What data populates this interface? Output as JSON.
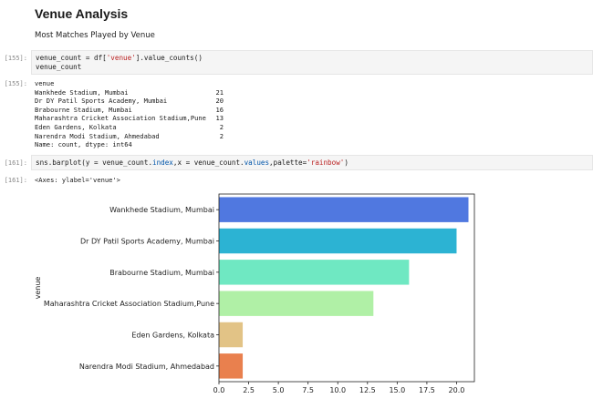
{
  "markdown": {
    "heading": "Venue Analysis",
    "subheading": "Most Matches Played by Venue"
  },
  "cells": {
    "cell1": {
      "prompt": "[155]:",
      "line1": {
        "a": "venue_count = df[",
        "b": "'venue'",
        "c": "].value_counts()"
      },
      "line2": "venue_count"
    },
    "output1": {
      "prompt": "[155]:",
      "header": "venue",
      "rows": [
        {
          "name": "Wankhede Stadium, Mumbai",
          "count": "21"
        },
        {
          "name": "Dr DY Patil Sports Academy, Mumbai",
          "count": "20"
        },
        {
          "name": "Brabourne Stadium, Mumbai",
          "count": "16"
        },
        {
          "name": "Maharashtra Cricket Association Stadium,Pune",
          "count": "13"
        },
        {
          "name": "Eden Gardens, Kolkata",
          "count": "2"
        },
        {
          "name": "Narendra Modi Stadium, Ahmedabad",
          "count": "2"
        }
      ],
      "footer": "Name: count, dtype: int64"
    },
    "cell2": {
      "prompt": "[161]:",
      "code": {
        "a": "sns.barplot(y = venue_count.",
        "b": "index",
        "c": ",x = venue_count.",
        "d": "values",
        "e": ",palette=",
        "f": "'rainbow'",
        "g": ")"
      }
    },
    "output2": {
      "prompt": "[161]:",
      "text": "<Axes: ylabel='venue'>"
    }
  },
  "chart_data": {
    "type": "bar",
    "orientation": "horizontal",
    "categories": [
      "Wankhede Stadium, Mumbai",
      "Dr DY Patil Sports Academy, Mumbai",
      "Brabourne Stadium, Mumbai",
      "Maharashtra Cricket Association Stadium,Pune",
      "Eden Gardens, Kolkata",
      "Narendra Modi Stadium, Ahmedabad"
    ],
    "values": [
      21,
      20,
      16,
      13,
      2,
      2
    ],
    "colors": [
      "#5078e0",
      "#2cb3d3",
      "#6fe8c2",
      "#b0f0a6",
      "#e2c386",
      "#e9804e"
    ],
    "ylabel": "venue",
    "xlabel": "",
    "xlim": [
      0,
      21.5
    ],
    "xticks": [
      0,
      2.5,
      5,
      7.5,
      10,
      12.5,
      15,
      17.5,
      20
    ],
    "xtick_labels": [
      "0.0",
      "2.5",
      "5.0",
      "7.5",
      "10.0",
      "12.5",
      "15.0",
      "17.5",
      "20.0"
    ],
    "grid": false
  }
}
